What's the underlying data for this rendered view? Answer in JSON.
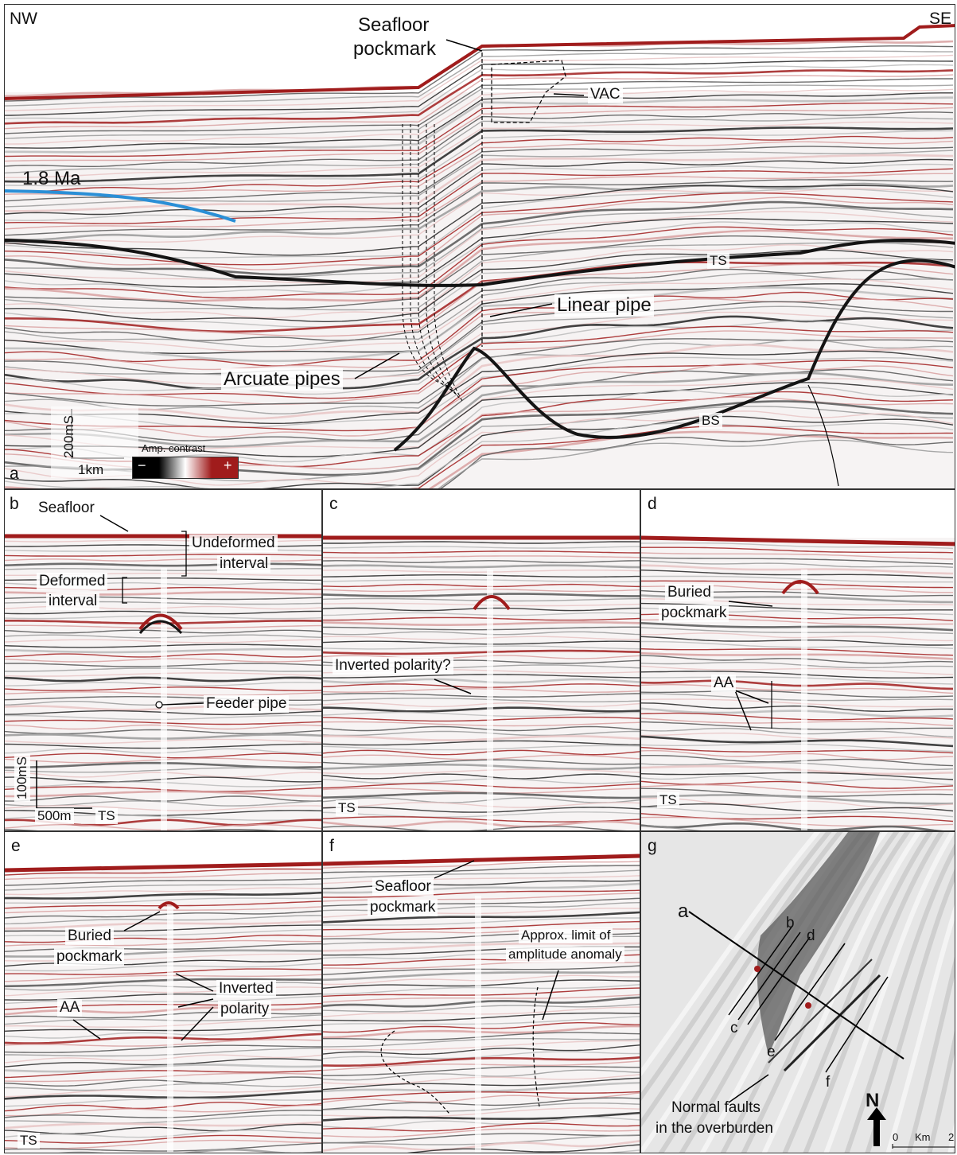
{
  "panel_a": {
    "letter": "a",
    "nw": "NW",
    "se": "SE",
    "seafloor_pockmark_1": "Seafloor",
    "seafloor_pockmark_2": "pockmark",
    "vac": "VAC",
    "age_horizon": "1.8 Ma",
    "ts": "TS",
    "bs": "BS",
    "linear_pipe": "Linear pipe",
    "arcuate_pipes": "Arcuate pipes",
    "scale_vertical": "200mS",
    "scale_horizontal": "1km",
    "amp_contrast": "Amp. contrast",
    "minus": "−",
    "plus": "+"
  },
  "panel_b": {
    "letter": "b",
    "seafloor": "Seafloor",
    "undeformed_1": "Undeformed",
    "undeformed_2": "interval",
    "deformed_1": "Deformed",
    "deformed_2": "interval",
    "feeder_pipe": "Feeder pipe",
    "scale_vertical": "100mS",
    "scale_horizontal": "500m",
    "ts": "TS"
  },
  "panel_c": {
    "letter": "c",
    "inverted_polarity": "Inverted polarity?",
    "ts": "TS"
  },
  "panel_d": {
    "letter": "d",
    "buried_1": "Buried",
    "buried_2": "pockmark",
    "aa": "AA",
    "ts": "TS"
  },
  "panel_e": {
    "letter": "e",
    "buried_1": "Buried",
    "buried_2": "pockmark",
    "aa": "AA",
    "inverted_1": "Inverted",
    "inverted_2": "polarity",
    "ts": "TS"
  },
  "panel_f": {
    "letter": "f",
    "seafloor_1": "Seafloor",
    "seafloor_2": "pockmark",
    "approx_1": "Approx. limit of",
    "approx_2": "amplitude anomaly"
  },
  "panel_g": {
    "letter": "g",
    "line_a": "a",
    "line_b": "b",
    "line_c": "c",
    "line_d": "d",
    "line_e": "e",
    "line_f": "f",
    "faults_1": "Normal faults",
    "faults_2": "in the overburden",
    "north": "N",
    "scale_0": "0",
    "scale_unit": "Km",
    "scale_2": "2"
  },
  "colors": {
    "positive": "#a01c1c",
    "negative": "#141414",
    "horizon_1_8": "#2a8fd6"
  }
}
